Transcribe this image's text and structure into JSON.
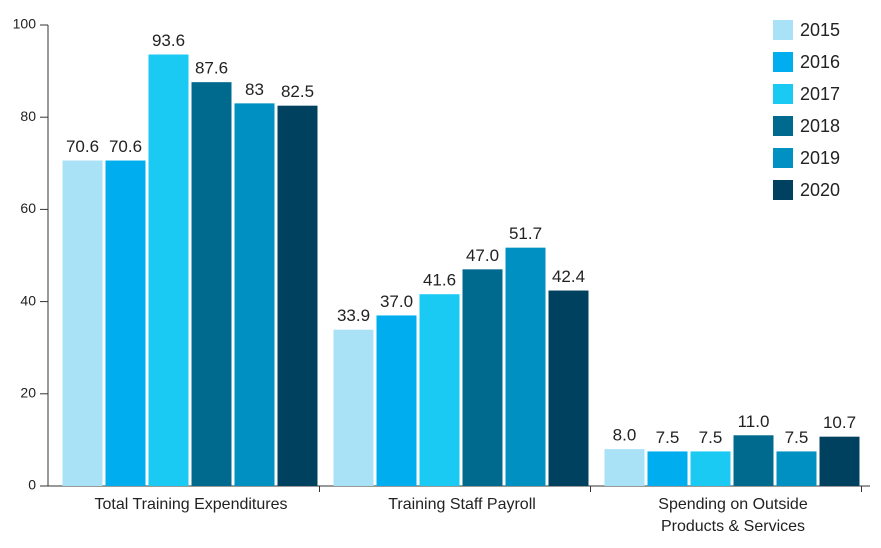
{
  "chart_data": {
    "type": "bar",
    "categories": [
      "Total Training Expenditures",
      "Training Staff Payroll",
      "Spending on Outside Products & Services"
    ],
    "series": [
      {
        "name": "2015",
        "color": "#a9e1f7",
        "values": [
          70.6,
          33.9,
          8.0
        ],
        "value_labels": [
          "70.6",
          "33.9",
          "8.0"
        ]
      },
      {
        "name": "2016",
        "color": "#00aeef",
        "values": [
          70.6,
          37.0,
          7.5
        ],
        "value_labels": [
          "70.6",
          "37.0",
          "7.5"
        ]
      },
      {
        "name": "2017",
        "color": "#1bcaf3",
        "values": [
          93.6,
          41.6,
          7.5
        ],
        "value_labels": [
          "93.6",
          "41.6",
          "7.5"
        ]
      },
      {
        "name": "2018",
        "color": "#006a8e",
        "values": [
          87.6,
          47.0,
          11.0
        ],
        "value_labels": [
          "87.6",
          "47.0",
          "11.0"
        ]
      },
      {
        "name": "2019",
        "color": "#0090c2",
        "values": [
          83,
          51.7,
          7.5
        ],
        "value_labels": [
          "83",
          "51.7",
          "7.5"
        ]
      },
      {
        "name": "2020",
        "color": "#00415f",
        "values": [
          82.5,
          42.4,
          10.7
        ],
        "value_labels": [
          "82.5",
          "42.4",
          "10.7"
        ]
      }
    ],
    "ylim": [
      0,
      100
    ],
    "yticks": [
      0,
      20,
      40,
      60,
      80,
      100
    ],
    "grid": false,
    "legend": "upper right"
  }
}
